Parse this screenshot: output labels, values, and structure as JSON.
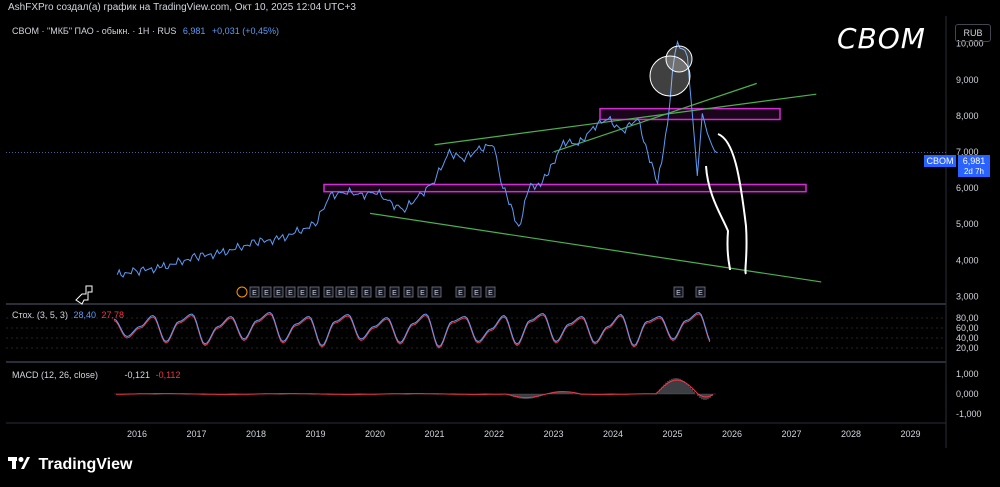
{
  "header": {
    "attribution": "AshFXPro создал(а) график на TradingView.com, Окт 10, 2025 12:04 UTC+3"
  },
  "legend": {
    "symbol_text": "CBOM · \"МКБ\" ПАО - обыкн. · 1H · RUS",
    "last": "6,981",
    "change": "+0,031 (+0,45%)"
  },
  "big_ticker": "CBOM",
  "currency_button": "RUB",
  "price_tag": {
    "name": "CBOM",
    "price": "6,981",
    "countdown": "2d 7h"
  },
  "stoch": {
    "label": "Стох. (3, 5, 3)",
    "k": "28,40",
    "d": "27,78"
  },
  "macd": {
    "label": "MACD (12, 26, close)",
    "macd": "-0,121",
    "signal": "-0,112"
  },
  "footer": {
    "brand": "TradingView",
    "logo_icon": "tradingview-logo-icon"
  },
  "colors": {
    "price_line": "#5b9cf6",
    "trend_line": "#4caf50",
    "zone": "#d62ad6",
    "stoch_k": "#5b9cf6",
    "stoch_d": "#f23645"
  },
  "chart_data": [
    {
      "type": "line",
      "name": "price",
      "x": [
        "2015-09",
        "2016-01",
        "2016-06",
        "2017-01",
        "2017-06",
        "2018-01",
        "2018-06",
        "2019-01",
        "2019-04",
        "2019-07",
        "2019-10",
        "2020-01",
        "2020-04",
        "2020-07",
        "2020-10",
        "2021-01",
        "2021-04",
        "2021-07",
        "2021-10",
        "2022-01",
        "2022-02",
        "2022-04",
        "2022-06",
        "2022-08",
        "2022-10",
        "2022-12",
        "2023-03",
        "2023-06",
        "2023-09",
        "2023-12",
        "2024-03",
        "2024-06",
        "2024-08",
        "2024-10",
        "2024-12",
        "2025-01",
        "2025-02",
        "2025-03",
        "2025-04",
        "2025-05",
        "2025-06",
        "2025-07",
        "2025-08",
        "2025-09",
        "2025-10"
      ],
      "values": [
        3.6,
        3.7,
        3.8,
        4.1,
        4.2,
        4.5,
        4.6,
        5.0,
        5.8,
        5.9,
        5.8,
        5.9,
        5.6,
        5.4,
        5.8,
        6.2,
        7.0,
        6.8,
        7.1,
        7.2,
        6.4,
        5.6,
        4.9,
        6.0,
        6.1,
        6.4,
        7.3,
        7.2,
        7.7,
        7.9,
        7.6,
        7.9,
        7.0,
        6.1,
        7.8,
        9.2,
        10.1,
        9.8,
        9.7,
        8.0,
        6.4,
        8.0,
        7.6,
        7.1,
        6.98
      ],
      "ylim": [
        2.9,
        10.6
      ],
      "yticks": [
        "3,000",
        "4,000",
        "5,000",
        "6,000",
        "7,000",
        "8,000",
        "9,000",
        "10,000"
      ],
      "xticks": [
        "2016",
        "2017",
        "2018",
        "2019",
        "2020",
        "2021",
        "2022",
        "2023",
        "2024",
        "2025",
        "2026",
        "2027",
        "2028",
        "2029"
      ],
      "zones": [
        {
          "from": 5.9,
          "to": 6.1
        },
        {
          "from": 7.9,
          "to": 8.2
        }
      ],
      "trendlines": [
        {
          "from": [
            "2019-12",
            5.3
          ],
          "to": [
            "2027-07",
            3.4
          ]
        },
        {
          "from": [
            "2021-01",
            7.2
          ],
          "to": [
            "2027-06",
            8.6
          ]
        },
        {
          "from": [
            "2023-01",
            7.0
          ],
          "to": [
            "2026-06",
            8.9
          ]
        }
      ]
    },
    {
      "type": "line",
      "name": "stochastic",
      "yticks": [
        "20,00",
        "40,00",
        "60,00",
        "80,00"
      ],
      "ylim": [
        0,
        100
      ],
      "series": [
        {
          "name": "K",
          "values": [
            75,
            40,
            60,
            82,
            30,
            70,
            85,
            25,
            60,
            80,
            35,
            72,
            88,
            30,
            65,
            80,
            22,
            70,
            84,
            35,
            60,
            78,
            28,
            66,
            85,
            20,
            70,
            80,
            30,
            55,
            82,
            25,
            72,
            86,
            30,
            65,
            80,
            28,
            60,
            84,
            22,
            70,
            80,
            35,
            72,
            88,
            28
          ]
        }
      ]
    },
    {
      "type": "bar",
      "name": "macd",
      "yticks": [
        "1,000",
        "0,000",
        "-1,000"
      ],
      "ylim": [
        -1.3,
        1.3
      ]
    }
  ]
}
